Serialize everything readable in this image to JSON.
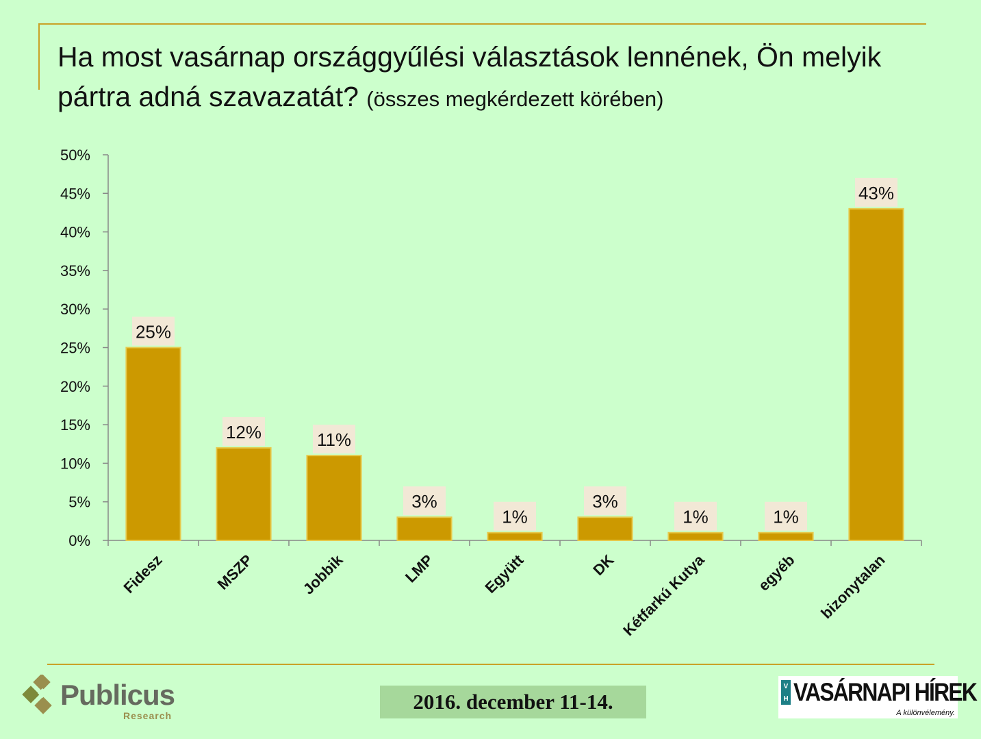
{
  "title": {
    "main": "Ha most vasárnap országgyűlési választások lennének, Ön melyik pártra adná szavazatát?",
    "sub": "(összes megkérdezett körében)"
  },
  "footer": {
    "date": "2016. december 11-14.",
    "publicus_name": "Publicus",
    "publicus_sub": "Research",
    "vh_badge_top": "V",
    "vh_badge_bottom": "H",
    "vh_name": "VASÁRNAPI HÍREK",
    "vh_tagline": "A különvélemény."
  },
  "colors": {
    "background": "#ccffcc",
    "bar_fill": "#cc9900",
    "bar_edge": "#e6c84a",
    "label_bg": "#f2e8d6",
    "axis": "#888888",
    "accent_line": "#c9a227"
  },
  "chart_data": {
    "type": "bar",
    "categories": [
      "Fidesz",
      "MSZP",
      "Jobbik",
      "LMP",
      "Együtt",
      "DK",
      "Kétfarkú Kutya",
      "egyéb",
      "bizonytalan"
    ],
    "values": [
      25,
      12,
      11,
      3,
      1,
      3,
      1,
      1,
      43
    ],
    "data_labels": [
      "25%",
      "12%",
      "11%",
      "3%",
      "1%",
      "3%",
      "1%",
      "1%",
      "43%"
    ],
    "y_ticks": [
      "0%",
      "5%",
      "10%",
      "15%",
      "20%",
      "25%",
      "30%",
      "35%",
      "40%",
      "45%",
      "50%"
    ],
    "ylim": [
      0,
      50
    ],
    "grid": false,
    "legend": "none"
  }
}
